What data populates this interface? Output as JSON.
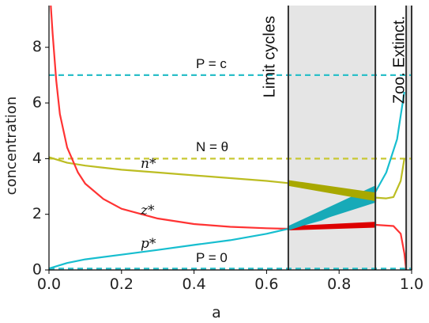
{
  "chart_data": {
    "type": "line",
    "xlabel": "a",
    "ylabel": "concentration",
    "xlim": [
      0.0,
      1.0
    ],
    "ylim": [
      0.0,
      9.5
    ],
    "xticks": [
      "0.0",
      "0.2",
      "0.4",
      "0.6",
      "0.8",
      "1.0"
    ],
    "yticks": [
      "0",
      "2",
      "4",
      "6",
      "8"
    ],
    "grid": false,
    "params": {
      "c": 7.0,
      "theta": 4.0
    },
    "series": [
      {
        "name": "n*",
        "color": "#bcbd22",
        "x": [
          0.0,
          0.05,
          0.1,
          0.2,
          0.3,
          0.4,
          0.5,
          0.6,
          0.66,
          0.9,
          0.93,
          0.95,
          0.97,
          0.98
        ],
        "y": [
          4.05,
          3.85,
          3.75,
          3.6,
          3.5,
          3.4,
          3.3,
          3.2,
          3.12,
          2.6,
          2.57,
          2.62,
          3.2,
          4.0
        ]
      },
      {
        "name": "z*",
        "color": "#ff3333",
        "x": [
          0.005,
          0.01,
          0.02,
          0.03,
          0.05,
          0.08,
          0.1,
          0.15,
          0.2,
          0.3,
          0.4,
          0.5,
          0.6,
          0.66,
          0.9,
          0.95,
          0.97,
          0.98,
          0.985
        ],
        "y": [
          9.5,
          8.5,
          6.8,
          5.6,
          4.4,
          3.5,
          3.1,
          2.55,
          2.2,
          1.85,
          1.65,
          1.55,
          1.5,
          1.48,
          1.62,
          1.58,
          1.3,
          0.6,
          0.0
        ]
      },
      {
        "name": "p*",
        "color": "#17becf",
        "x": [
          0.0,
          0.05,
          0.1,
          0.2,
          0.3,
          0.4,
          0.5,
          0.6,
          0.66,
          0.75,
          0.85,
          0.9,
          0.93,
          0.96,
          0.98
        ],
        "y": [
          0.05,
          0.25,
          0.38,
          0.55,
          0.72,
          0.9,
          1.07,
          1.3,
          1.48,
          1.8,
          2.35,
          2.8,
          3.5,
          4.7,
          6.4
        ]
      }
    ],
    "limit_cycle_bands": [
      {
        "name": "z*",
        "color": "#dd0000",
        "x_start": 0.66,
        "x_end": 0.9,
        "low": [
          1.45,
          1.55
        ],
        "high": [
          1.55,
          1.7
        ]
      },
      {
        "name": "p*",
        "color": "#17aab8",
        "x_start": 0.66,
        "x_end": 0.9,
        "low": [
          1.45,
          2.45
        ],
        "high": [
          1.55,
          3.0
        ]
      },
      {
        "name": "n*",
        "color": "#a8a800",
        "x_start": 0.66,
        "x_end": 0.9,
        "low": [
          3.05,
          2.5
        ],
        "high": [
          3.2,
          2.75
        ]
      }
    ],
    "hlines": [
      {
        "y": 7.0,
        "color": "#2bbfc8",
        "label": "P = c"
      },
      {
        "y": 4.0,
        "color": "#c8c833",
        "label": "N = θ"
      },
      {
        "y": 0.05,
        "color": "#2bbfc8",
        "label": "P = 0"
      }
    ],
    "regions": [
      {
        "x_start": 0.66,
        "x_end": 0.9,
        "fill": "#e5e5e5",
        "label": "Limit cycles"
      },
      {
        "x_start": 0.985,
        "x_end": 1.0,
        "fill": "#e5e5e5",
        "label": "Zoo. Extinct."
      }
    ]
  }
}
